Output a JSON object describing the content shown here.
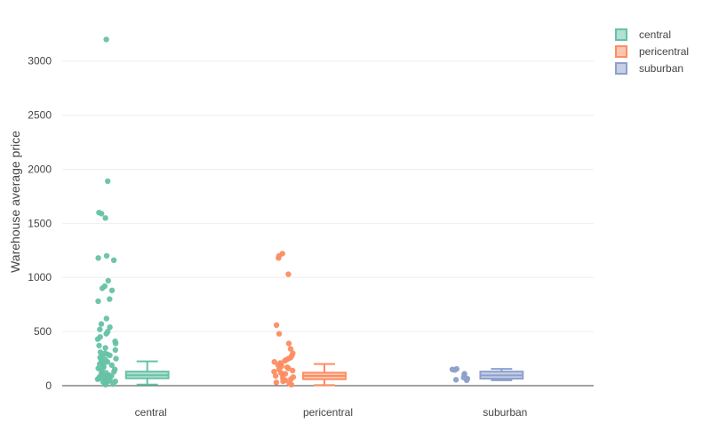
{
  "chart_data": {
    "type": "box",
    "ylabel": "Warehouse average price",
    "xlabel": "",
    "ylim": [
      0,
      3400
    ],
    "yticks": [
      0,
      500,
      1000,
      1500,
      2000,
      2500,
      3000
    ],
    "grid": true,
    "legend_position": "top-right",
    "categories": [
      "central",
      "pericentral",
      "suburban"
    ],
    "series": [
      {
        "name": "central",
        "color": "#66c2a5",
        "box": {
          "lowerfence": 10,
          "q1": 68,
          "median": 97,
          "q3": 130,
          "upperfence": 225
        },
        "points": [
          3200,
          1890,
          1600,
          1590,
          1550,
          1200,
          1180,
          1160,
          970,
          920,
          900,
          880,
          800,
          780,
          620,
          570,
          540,
          520,
          500,
          480,
          450,
          430,
          410,
          390,
          370,
          350,
          330,
          310,
          300,
          290,
          280,
          270,
          260,
          250,
          240,
          230,
          220,
          210,
          200,
          190,
          180,
          170,
          160,
          150,
          140,
          130,
          120,
          110,
          100,
          95,
          90,
          85,
          80,
          75,
          70,
          65,
          60,
          55,
          50,
          45,
          40,
          35,
          30,
          25,
          20,
          15,
          10
        ]
      },
      {
        "name": "pericentral",
        "color": "#fc8d62",
        "box": {
          "lowerfence": 5,
          "q1": 60,
          "median": 90,
          "q3": 120,
          "upperfence": 200
        },
        "points": [
          1220,
          1200,
          1180,
          1030,
          560,
          480,
          390,
          340,
          300,
          280,
          260,
          250,
          240,
          230,
          220,
          210,
          200,
          190,
          180,
          170,
          160,
          150,
          140,
          130,
          120,
          110,
          100,
          90,
          80,
          70,
          60,
          50,
          40,
          30,
          20,
          10
        ]
      },
      {
        "name": "suburban",
        "color": "#8da0cb",
        "box": {
          "lowerfence": 50,
          "q1": 65,
          "median": 95,
          "q3": 130,
          "upperfence": 155
        },
        "points": [
          155,
          150,
          145,
          110,
          100,
          75,
          65,
          55,
          50
        ]
      }
    ]
  }
}
